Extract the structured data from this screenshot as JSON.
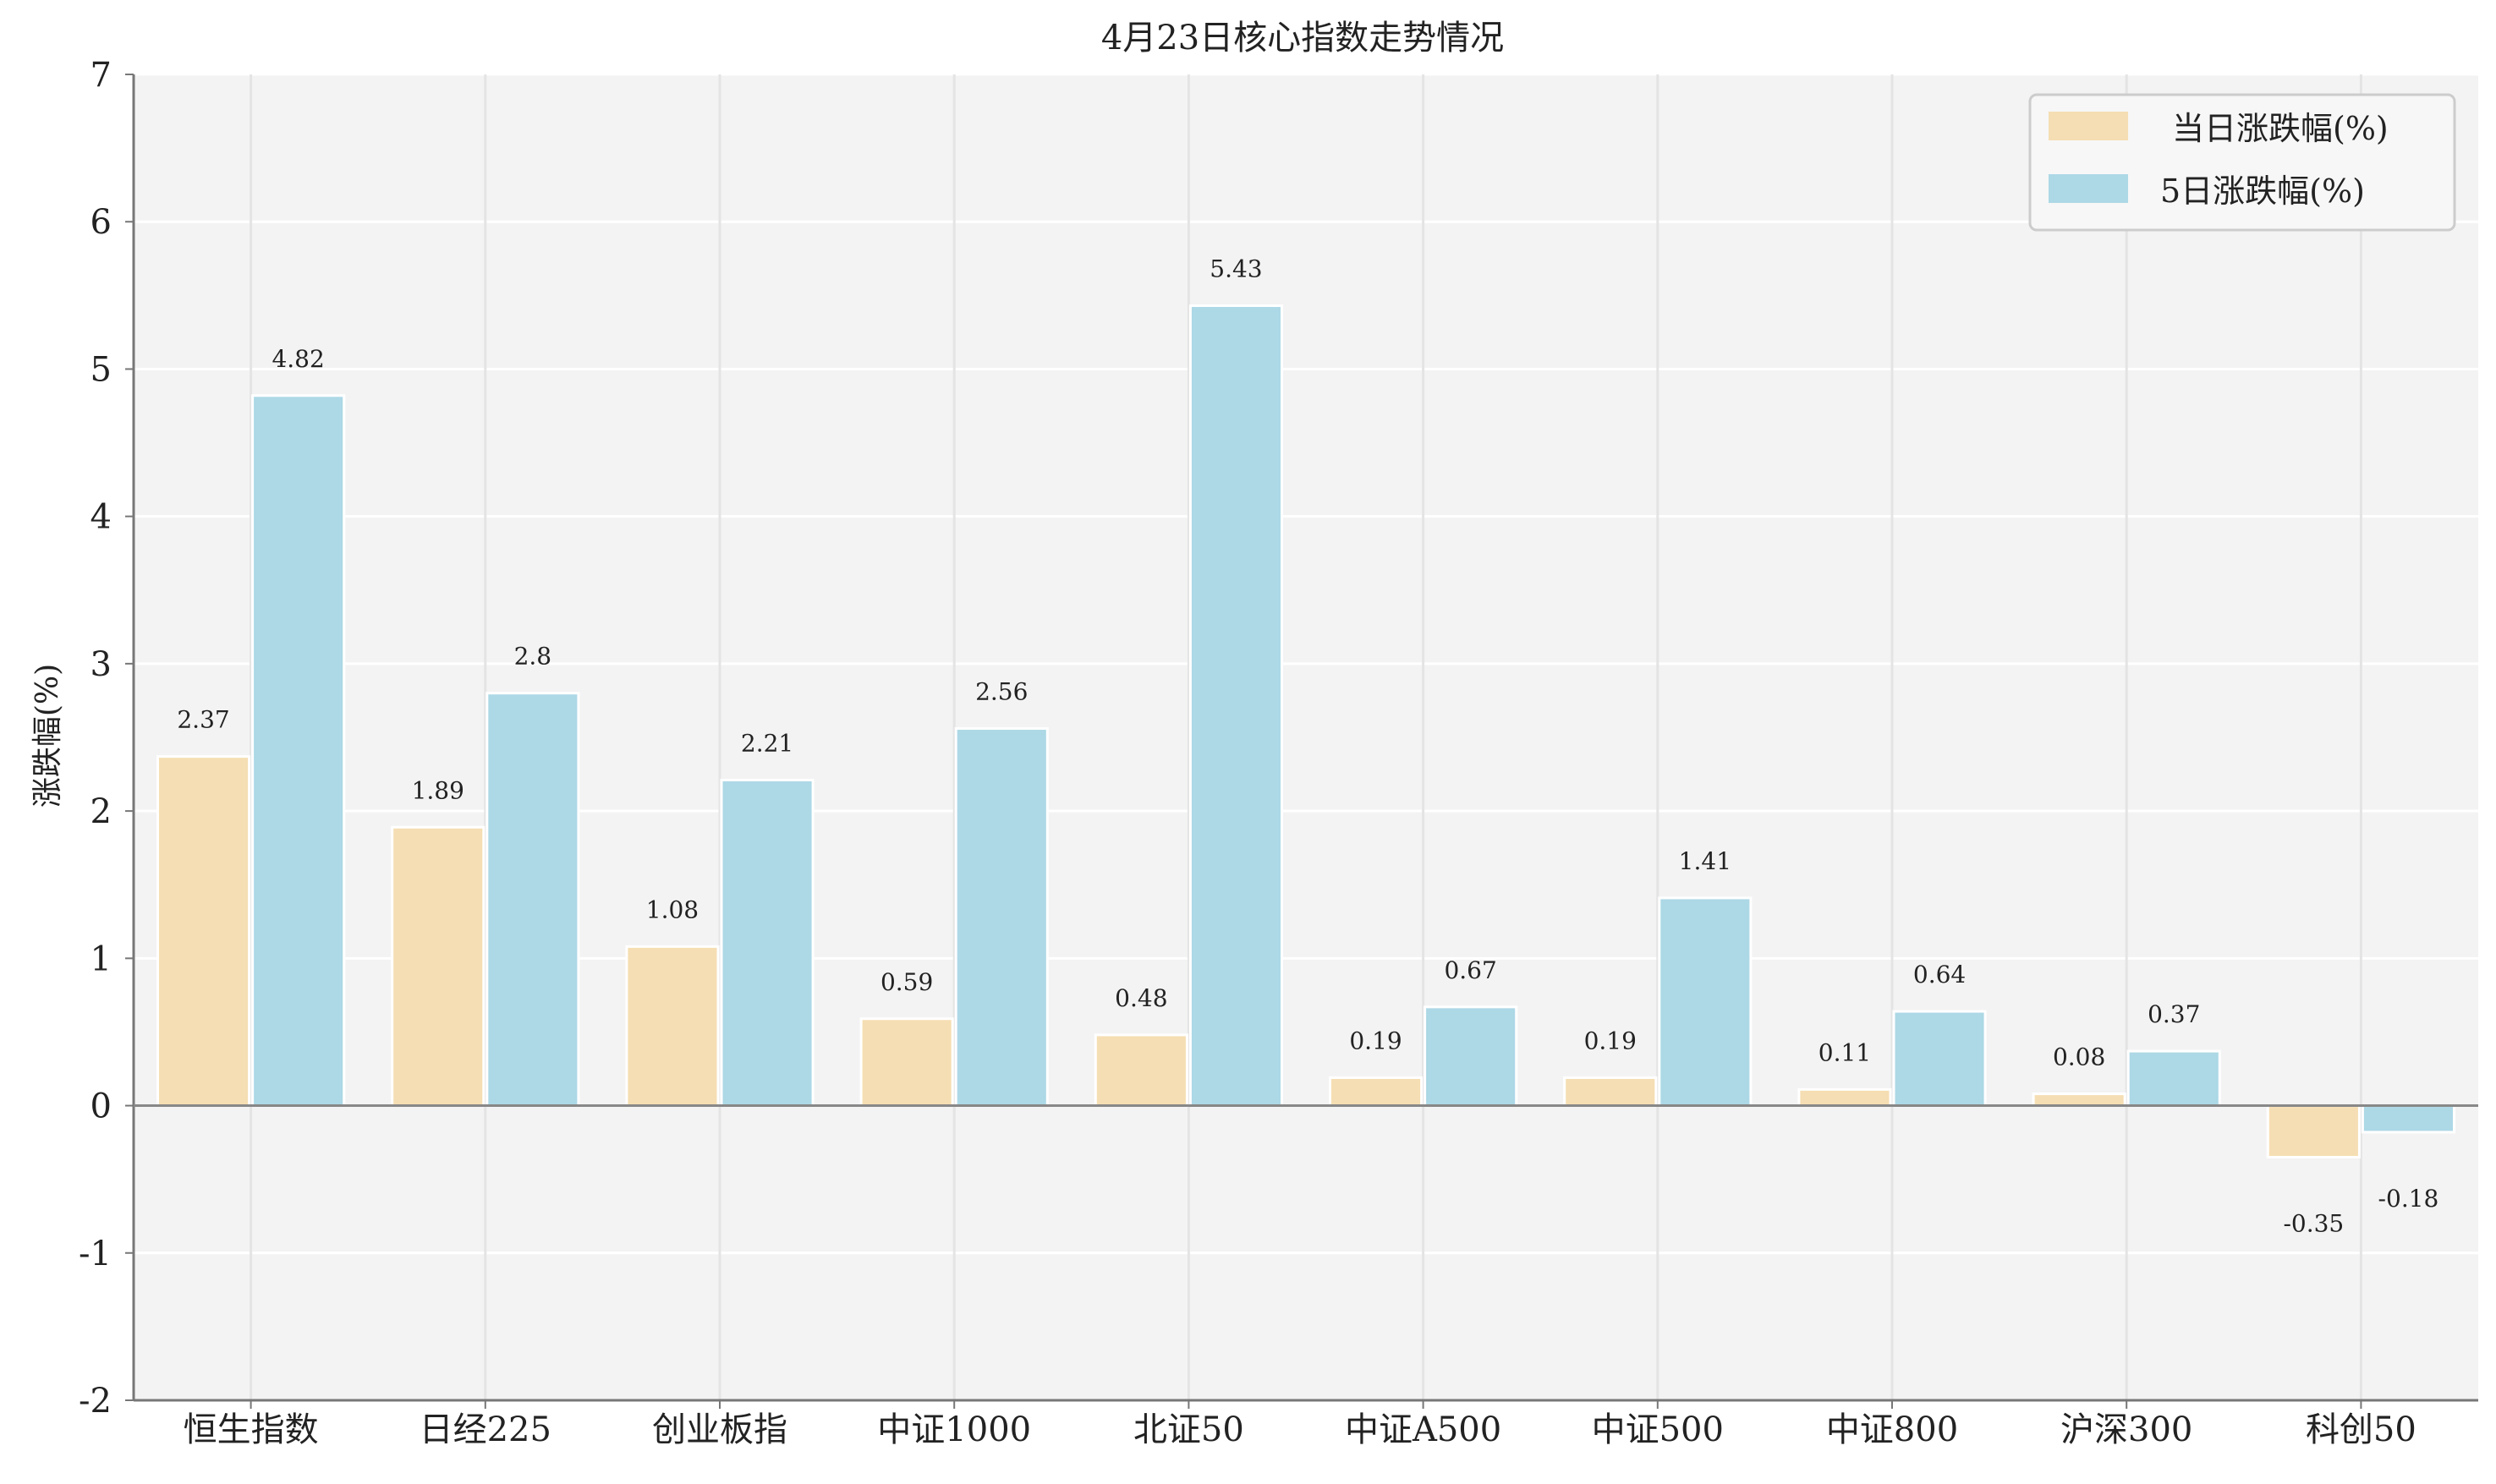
{
  "chart_data": {
    "type": "bar",
    "title": "4月23日核心指数走势情况",
    "xlabel": "",
    "ylabel": "涨跌幅(%)",
    "ylim": [
      -2,
      7
    ],
    "yticks": [
      "7",
      "6",
      "5",
      "4",
      "3",
      "2",
      "1",
      "0",
      "-1",
      "-2"
    ],
    "grid": true,
    "legend_position": "top-right",
    "categories": [
      "恒生指数",
      "日经225",
      "创业板指",
      "中证1000",
      "北证50",
      "中证A500",
      "中证500",
      "中证800",
      "沪深300",
      "科创50"
    ],
    "series": [
      {
        "name": "当日涨跌幅(%)",
        "color": "#f5deb3",
        "values": [
          2.37,
          1.89,
          1.08,
          0.59,
          0.48,
          0.19,
          0.19,
          0.11,
          0.08,
          -0.35
        ],
        "labels": [
          "2.37",
          "1.89",
          "1.08",
          "0.59",
          "0.48",
          "0.19",
          "0.19",
          "0.11",
          "0.08",
          "-0.35"
        ]
      },
      {
        "name": "5日涨跌幅(%)",
        "color": "#add8e6",
        "values": [
          4.82,
          2.8,
          2.21,
          2.56,
          5.43,
          0.67,
          1.41,
          0.64,
          0.37,
          -0.18
        ],
        "labels": [
          "4.82",
          "2.8",
          "2.21",
          "2.56",
          "5.43",
          "0.67",
          "1.41",
          "0.64",
          "0.37",
          "-0.18"
        ]
      }
    ]
  }
}
